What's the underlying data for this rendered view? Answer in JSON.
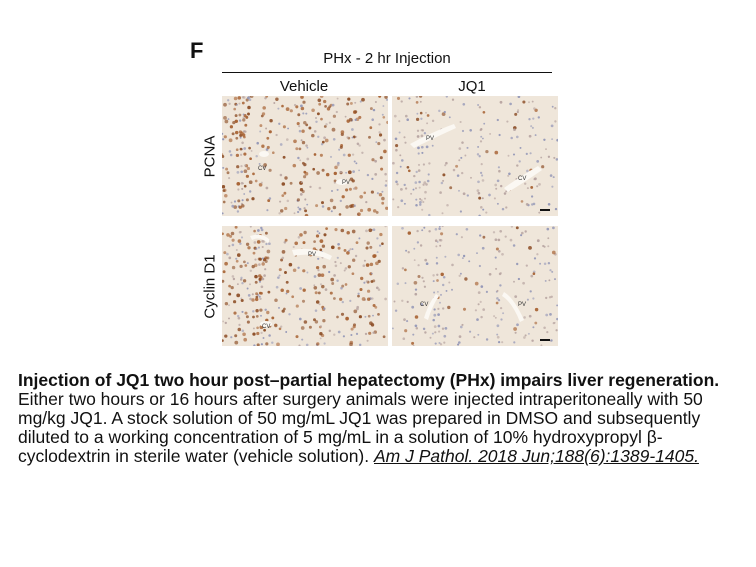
{
  "figure": {
    "panel_letter": "F",
    "condition": "PHx - 2 hr Injection",
    "columns": [
      "Vehicle",
      "JQ1"
    ],
    "rows": [
      "PCNA",
      "Cyclin D1"
    ],
    "panels": [
      {
        "vessels": [
          "CV",
          "PV"
        ]
      },
      {
        "vessels": [
          "PV",
          "CV"
        ]
      },
      {
        "vessels": [
          "PV",
          "CV"
        ]
      },
      {
        "vessels": [
          "CV",
          "PV"
        ]
      }
    ]
  },
  "caption": {
    "title": "Injection of JQ1 two hour post–partial hepatectomy (PHx) impairs liver regeneration.",
    "body": "Either two hours or 16 hours after surgery animals were injected intraperitoneally with 50 mg/kg JQ1. A stock solution of 50 mg/mL JQ1 was prepared in DMSO and subsequently diluted to a working concentration of 5 mg/mL in a solution of 10% hydroxypropyl β-cyclodextrin in sterile water (vehicle solution).",
    "citation": "Am J Pathol. 2018 Jun;188(6):1389-1405."
  }
}
